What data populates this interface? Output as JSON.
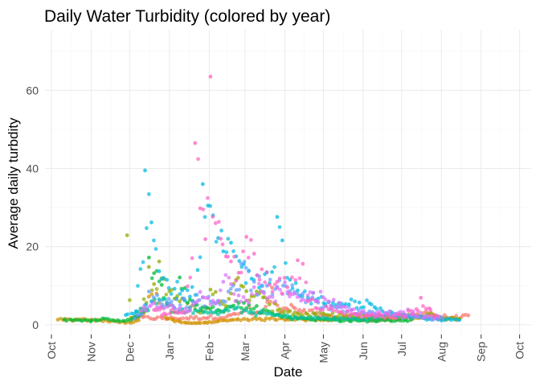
{
  "chart_data": {
    "type": "scatter",
    "title": "Daily Water Turbidity (colored by year)",
    "xlabel": "Date",
    "ylabel": "Average daily turbdity",
    "x_ticks": [
      "Oct",
      "Nov",
      "Dec",
      "Jan",
      "Feb",
      "Mar",
      "Apr",
      "May",
      "Jun",
      "Jul",
      "Aug",
      "Sep",
      "Oct"
    ],
    "x_range": [
      "Sep 26",
      "Oct 5 (following year)"
    ],
    "y_ticks": [
      0,
      20,
      40,
      60
    ],
    "ylim": [
      -2.5,
      75.5
    ],
    "grid": true,
    "legend": "none",
    "color_encoding": "year (no legend shown)",
    "series": [
      {
        "color": "#F8766D",
        "points": [
          [
            65,
            2
          ],
          [
            95,
            1.6
          ],
          [
            140,
            2.5
          ],
          [
            148,
            3.1
          ],
          [
            152,
            6.2
          ],
          [
            156,
            2.8
          ],
          [
            165,
            3.4
          ],
          [
            172,
            9.5
          ],
          [
            178,
            3
          ],
          [
            183,
            4.2
          ],
          [
            187,
            5.1
          ],
          [
            192,
            3.2
          ],
          [
            197,
            3.8
          ],
          [
            205,
            2.9
          ],
          [
            212,
            2.4
          ],
          [
            220,
            1.9
          ],
          [
            232,
            1.7
          ],
          [
            250,
            1.2
          ],
          [
            270,
            1.5
          ],
          [
            285,
            2.7
          ],
          [
            292,
            3.4
          ],
          [
            296,
            3.1
          ],
          [
            312,
            1.8
          ],
          [
            325,
            2.4
          ]
        ]
      },
      {
        "color": "#D39200",
        "points": [
          [
            5,
            1.3
          ],
          [
            30,
            1.2
          ],
          [
            50,
            1
          ],
          [
            62,
            0.5
          ],
          [
            66,
            1
          ],
          [
            70,
            2.5
          ],
          [
            72,
            3
          ],
          [
            76,
            7.2
          ],
          [
            82,
            8
          ],
          [
            86,
            4.4
          ],
          [
            90,
            1.5
          ],
          [
            95,
            1.2
          ],
          [
            100,
            0.8
          ],
          [
            105,
            0.5
          ],
          [
            110,
            0.4
          ],
          [
            115,
            0.5
          ],
          [
            120,
            0.6
          ],
          [
            125,
            0.6
          ],
          [
            130,
            0.9
          ],
          [
            135,
            1.2
          ],
          [
            142,
            1.3
          ],
          [
            150,
            1.5
          ],
          [
            160,
            1.4
          ],
          [
            170,
            1.5
          ],
          [
            180,
            1.6
          ],
          [
            195,
            1.5
          ],
          [
            205,
            1.2
          ],
          [
            220,
            1.6
          ],
          [
            240,
            1.8
          ],
          [
            260,
            1.6
          ],
          [
            280,
            1.9
          ],
          [
            300,
            2.1
          ],
          [
            318,
            1.5
          ]
        ]
      },
      {
        "color": "#93AA00",
        "points": [
          [
            59,
            22.9
          ],
          [
            62,
            1.8
          ],
          [
            68,
            2.3
          ],
          [
            76,
            14.8
          ],
          [
            80,
            10.4
          ],
          [
            84,
            16.2
          ],
          [
            88,
            11.7
          ],
          [
            92,
            8.6
          ],
          [
            96,
            6.7
          ],
          [
            100,
            6
          ],
          [
            106,
            5.5
          ],
          [
            112,
            4
          ],
          [
            118,
            3.5
          ],
          [
            124,
            9
          ],
          [
            128,
            8.4
          ],
          [
            132,
            6
          ],
          [
            136,
            4.8
          ],
          [
            140,
            8
          ],
          [
            144,
            11.5
          ],
          [
            148,
            10
          ],
          [
            152,
            8.6
          ],
          [
            156,
            7.3
          ],
          [
            160,
            8.5
          ],
          [
            165,
            7
          ],
          [
            170,
            5.2
          ],
          [
            178,
            4
          ],
          [
            186,
            3.5
          ],
          [
            200,
            2.6
          ],
          [
            215,
            2.5
          ],
          [
            230,
            2.4
          ],
          [
            245,
            2.2
          ],
          [
            260,
            2.1
          ],
          [
            280,
            2.5
          ],
          [
            300,
            2.3
          ],
          [
            318,
            1.5
          ]
        ]
      },
      {
        "color": "#00BA38",
        "points": [
          [
            10,
            1.4
          ],
          [
            18,
            1.2
          ],
          [
            24,
            1
          ],
          [
            34,
            1.3
          ],
          [
            40,
            1.6
          ],
          [
            48,
            1.2
          ],
          [
            56,
            1
          ],
          [
            65,
            2
          ],
          [
            70,
            3
          ],
          [
            74,
            3.6
          ],
          [
            76,
            17.2
          ],
          [
            80,
            13.2
          ],
          [
            86,
            10.2
          ],
          [
            90,
            5.5
          ],
          [
            96,
            3.2
          ],
          [
            100,
            12.1
          ],
          [
            104,
            9.4
          ],
          [
            108,
            6.4
          ],
          [
            112,
            5
          ],
          [
            118,
            4.5
          ],
          [
            124,
            4.1
          ],
          [
            130,
            3.8
          ],
          [
            136,
            4
          ],
          [
            142,
            4.9
          ],
          [
            146,
            5.6
          ],
          [
            150,
            5.6
          ],
          [
            154,
            5.1
          ],
          [
            160,
            4.8
          ],
          [
            168,
            3.6
          ],
          [
            176,
            2.6
          ],
          [
            186,
            2
          ],
          [
            200,
            1.6
          ],
          [
            220,
            1.3
          ],
          [
            240,
            1
          ],
          [
            260,
            1.1
          ],
          [
            280,
            1.2
          ]
        ]
      },
      {
        "color": "#00C19F",
        "points": [
          [
            66,
            3.2
          ],
          [
            72,
            4
          ],
          [
            78,
            6
          ],
          [
            84,
            6.5
          ],
          [
            90,
            5.1
          ],
          [
            96,
            4.2
          ],
          [
            102,
            4
          ],
          [
            108,
            3.8
          ],
          [
            114,
            3.5
          ],
          [
            120,
            3.4
          ],
          [
            126,
            3.1
          ],
          [
            132,
            3.2
          ],
          [
            138,
            3.6
          ],
          [
            144,
            4.2
          ],
          [
            150,
            3.8
          ],
          [
            156,
            3.2
          ],
          [
            162,
            3
          ],
          [
            168,
            2.8
          ],
          [
            174,
            2.5
          ],
          [
            180,
            2.2
          ],
          [
            190,
            1.9
          ],
          [
            200,
            1.7
          ],
          [
            215,
            1.6
          ],
          [
            235,
            1.5
          ],
          [
            255,
            1.6
          ]
        ]
      },
      {
        "color": "#00B9E3",
        "points": [
          [
            58,
            2.5
          ],
          [
            66,
            3.5
          ],
          [
            73,
            39.5
          ],
          [
            78,
            26.2
          ],
          [
            84,
            13.7
          ],
          [
            90,
            11.5
          ],
          [
            96,
            9.2
          ],
          [
            102,
            8.8
          ],
          [
            108,
            7.2
          ],
          [
            114,
            14
          ],
          [
            118,
            36
          ],
          [
            122,
            30.5
          ],
          [
            126,
            28
          ],
          [
            130,
            22.2
          ],
          [
            134,
            18.8
          ],
          [
            140,
            21
          ],
          [
            144,
            17.5
          ],
          [
            150,
            15.5
          ],
          [
            156,
            11.8
          ],
          [
            162,
            9.5
          ],
          [
            168,
            13.4
          ],
          [
            172,
            13.5
          ],
          [
            176,
            27.6
          ],
          [
            180,
            21.6
          ],
          [
            186,
            11.5
          ],
          [
            192,
            8.8
          ],
          [
            200,
            7
          ],
          [
            208,
            6.7
          ],
          [
            216,
            5.8
          ],
          [
            224,
            5.5
          ],
          [
            232,
            5.2
          ],
          [
            240,
            5.7
          ],
          [
            248,
            5.5
          ],
          [
            252,
            4.5
          ],
          [
            258,
            3.5
          ],
          [
            266,
            3
          ],
          [
            274,
            2.4
          ],
          [
            285,
            2
          ],
          [
            300,
            1.6
          ],
          [
            318,
            1.2
          ]
        ]
      },
      {
        "color": "#619CFF",
        "points": [
          [
            65,
            1.6
          ],
          [
            76,
            8.5
          ],
          [
            90,
            5.8
          ],
          [
            110,
            6
          ],
          [
            118,
            7
          ],
          [
            128,
            5.6
          ],
          [
            138,
            8.5
          ],
          [
            148,
            15.6
          ],
          [
            158,
            11
          ],
          [
            168,
            10
          ],
          [
            176,
            9.7
          ],
          [
            186,
            8.6
          ],
          [
            196,
            8
          ],
          [
            206,
            6.4
          ],
          [
            214,
            4.8
          ],
          [
            224,
            4.6
          ],
          [
            234,
            3.8
          ],
          [
            248,
            3.4
          ],
          [
            264,
            2.6
          ],
          [
            285,
            2.1
          ],
          [
            305,
            1.7
          ]
        ]
      },
      {
        "color": "#DB72FB",
        "points": [
          [
            70,
            3.6
          ],
          [
            80,
            5.5
          ],
          [
            90,
            4.6
          ],
          [
            100,
            4.2
          ],
          [
            108,
            3.6
          ],
          [
            116,
            8.4
          ],
          [
            122,
            6.8
          ],
          [
            128,
            5.4
          ],
          [
            134,
            11
          ],
          [
            140,
            10.4
          ],
          [
            146,
            7.5
          ],
          [
            152,
            6.2
          ],
          [
            158,
            9.6
          ],
          [
            164,
            8.5
          ],
          [
            170,
            7.1
          ],
          [
            176,
            9.4
          ],
          [
            182,
            10.9
          ],
          [
            188,
            7.8
          ],
          [
            196,
            6.5
          ],
          [
            204,
            8.2
          ],
          [
            212,
            7
          ],
          [
            220,
            6.4
          ],
          [
            226,
            4.4
          ],
          [
            234,
            3.8
          ],
          [
            242,
            3.3
          ],
          [
            250,
            2.8
          ],
          [
            260,
            3
          ],
          [
            272,
            3.3
          ],
          [
            282,
            3.4
          ],
          [
            292,
            2.2
          ],
          [
            302,
            1.8
          ]
        ]
      },
      {
        "color": "#FF61C3",
        "points": [
          [
            80,
            3.8
          ],
          [
            88,
            2.9
          ],
          [
            96,
            3.2
          ],
          [
            104,
            3.1
          ],
          [
            112,
            46.5
          ],
          [
            116,
            29.8
          ],
          [
            120,
            21.9
          ],
          [
            124,
            63.5
          ],
          [
            128,
            26
          ],
          [
            132,
            22
          ],
          [
            136,
            17.5
          ],
          [
            140,
            16.2
          ],
          [
            146,
            13.3
          ],
          [
            152,
            22.5
          ],
          [
            158,
            18.2
          ],
          [
            164,
            14.2
          ],
          [
            170,
            10.2
          ],
          [
            176,
            11
          ],
          [
            184,
            9.6
          ],
          [
            192,
            16.5
          ],
          [
            196,
            15.6
          ],
          [
            206,
            4.3
          ],
          [
            216,
            4
          ],
          [
            226,
            3.2
          ],
          [
            236,
            2.8
          ],
          [
            246,
            2.4
          ],
          [
            258,
            2.2
          ],
          [
            274,
            2.2
          ],
          [
            288,
            6.9
          ],
          [
            300,
            2.3
          ]
        ]
      }
    ]
  }
}
